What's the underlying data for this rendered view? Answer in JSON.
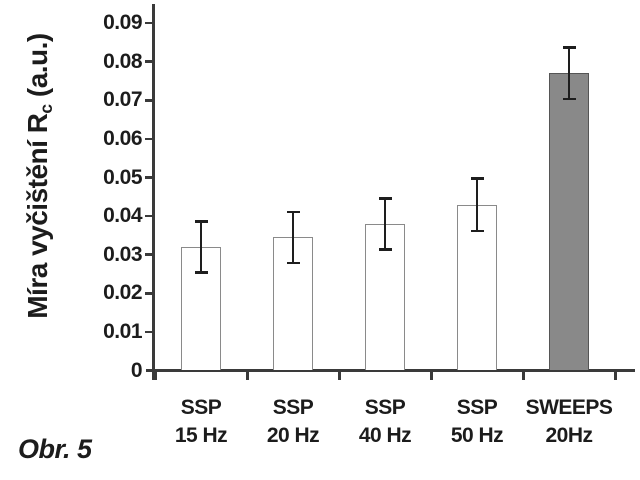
{
  "figure": {
    "caption": "Obr. 5"
  },
  "chart_data": {
    "type": "bar",
    "title": "",
    "xlabel": "",
    "ylabel": "Míra vyčištění Rc (a.u.)",
    "ylabel_parts": {
      "main": "Míra vyčištění R",
      "sub": "c",
      "suffix": " (a.u.)"
    },
    "categories": [
      "SSP 15 Hz",
      "SSP 20 Hz",
      "SSP 40 Hz",
      "SSP 50 Hz",
      "SWEEPS 20Hz"
    ],
    "category_lines": [
      [
        "SSP",
        "15 Hz"
      ],
      [
        "SSP",
        "20 Hz"
      ],
      [
        "SSP",
        "40 Hz"
      ],
      [
        "SSP",
        "50 Hz"
      ],
      [
        "SWEEPS",
        "20Hz"
      ]
    ],
    "values": [
      0.032,
      0.0345,
      0.038,
      0.043,
      0.077
    ],
    "errors": [
      0.0066,
      0.0066,
      0.0066,
      0.0068,
      0.0067
    ],
    "bar_styles": [
      {
        "fill": "#ffffff",
        "border": "#8a8a8a"
      },
      {
        "fill": "#ffffff",
        "border": "#8a8a8a"
      },
      {
        "fill": "#ffffff",
        "border": "#8a8a8a"
      },
      {
        "fill": "#ffffff",
        "border": "#8a8a8a"
      },
      {
        "fill": "#898989",
        "border": "#555555"
      }
    ],
    "ylim": [
      0,
      0.095
    ],
    "yticks": [
      0,
      0.01,
      0.02,
      0.03,
      0.04,
      0.05,
      0.06,
      0.07,
      0.08,
      0.09
    ],
    "ytick_labels": [
      "0",
      "0.01",
      "0.02",
      "0.03",
      "0.04",
      "0.05",
      "0.06",
      "0.07",
      "0.08",
      "0.09"
    ],
    "grid": false,
    "legend": null,
    "colors": {
      "axis": "#3a3a3a",
      "text": "#1c1c1c",
      "error_bar": "#1e1e1e",
      "background": "#ffffff"
    }
  }
}
